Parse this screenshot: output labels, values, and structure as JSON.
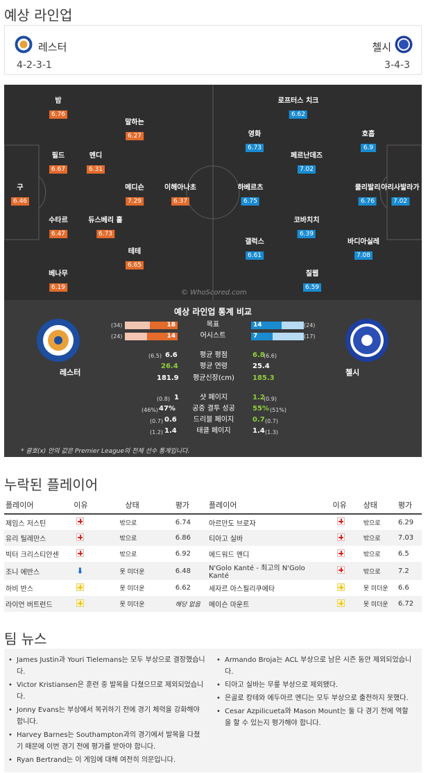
{
  "lineup_title": "예상 라인업",
  "home": {
    "name": "레스터",
    "formation": "4-2-3-1"
  },
  "away": {
    "name": "첼시",
    "formation": "3-4-3"
  },
  "pitch": {
    "watermark": "© WhoScored.com",
    "home_players": [
      {
        "name": "밤",
        "rating": "6.76"
      },
      {
        "name": "말하는",
        "rating": "6.27"
      },
      {
        "name": "필드",
        "rating": "6.67"
      },
      {
        "name": "멘디",
        "rating": "6.31"
      },
      {
        "name": "구",
        "rating": "6.46"
      },
      {
        "name": "메디슨",
        "rating": "7.29"
      },
      {
        "name": "이헤아나초",
        "rating": "6.37"
      },
      {
        "name": "수타르",
        "rating": "6.47"
      },
      {
        "name": "듀스베리 홀",
        "rating": "6.73"
      },
      {
        "name": "테테",
        "rating": "6.65"
      },
      {
        "name": "베나무",
        "rating": "6.19"
      }
    ],
    "away_players": [
      {
        "name": "로프터스 치크",
        "rating": "6.62"
      },
      {
        "name": "영화",
        "rating": "6.73"
      },
      {
        "name": "호흡",
        "rating": "6.9"
      },
      {
        "name": "페르난데즈",
        "rating": "7.02"
      },
      {
        "name": "하베르츠",
        "rating": "6.75"
      },
      {
        "name": "쿨리발리",
        "rating": "6.76"
      },
      {
        "name": "아리사발라가",
        "rating": "7.02"
      },
      {
        "name": "코바치치",
        "rating": "6.39"
      },
      {
        "name": "바디아실레",
        "rating": "7.08"
      },
      {
        "name": "갤럭스",
        "rating": "6.61"
      },
      {
        "name": "칠웹",
        "rating": "6.59"
      }
    ]
  },
  "stats": {
    "title": "예상 라인업 통계 비교",
    "bars": [
      {
        "label": "목표",
        "home": "18",
        "home_avg": "(34)",
        "away": "14",
        "away_avg": "(24)",
        "home_frac": 0.53,
        "away_frac": 0.58
      },
      {
        "label": "어시스트",
        "home": "14",
        "home_avg": "(24)",
        "away": "7",
        "away_avg": "(17)",
        "home_frac": 0.58,
        "away_frac": 0.41
      }
    ],
    "rows1": [
      {
        "label": "평균 평점",
        "home_avg": "(6.5)",
        "home": "6.6",
        "away": "6.8",
        "away_avg": "(6.6)"
      },
      {
        "label": "평균 연령",
        "home_avg": "",
        "home": "26.4",
        "away": "25.4",
        "away_avg": ""
      },
      {
        "label": "평균신장(cm)",
        "home_avg": "",
        "home": "181.9",
        "away": "185.3",
        "away_avg": ""
      }
    ],
    "rows2": [
      {
        "label": "샷 페이지",
        "home_avg": "(0.8)",
        "home": "1",
        "away": "1.2",
        "away_avg": "(0.9)"
      },
      {
        "label": "공중 결투 성공",
        "home_avg": "(46%)",
        "home": "47%",
        "away": "55%",
        "away_avg": "(51%)"
      },
      {
        "label": "드리블 페이지",
        "home_avg": "(0.7)",
        "home": "0.6",
        "away": "0.7",
        "away_avg": "(0.7)"
      },
      {
        "label": "태클 페이지",
        "home_avg": "(1.2)",
        "home": "1.4",
        "away": "1.4",
        "away_avg": "(1.3)"
      }
    ],
    "footnote": "* 괄호(x) 안의 값은 Premier League의 전체 선수 통계입니다."
  },
  "missing": {
    "title": "누락된 플레이어",
    "headers": {
      "player": "플레이어",
      "reason": "이유",
      "status": "상태",
      "rating": "평가"
    },
    "rows": [
      {
        "home_player": "제임스 저스틴",
        "home_icon": "red-cross",
        "home_status": "밖으로",
        "home_rating": "6.74",
        "away_player": "아르만도 브로자",
        "away_icon": "red-cross",
        "away_status": "밖으로",
        "away_rating": "6.29"
      },
      {
        "home_player": "유리 틸레만스",
        "home_icon": "red-cross",
        "home_status": "밖으로",
        "home_rating": "6.86",
        "away_player": "티아고 실바",
        "away_icon": "red-cross",
        "away_status": "밖으로",
        "away_rating": "7.03"
      },
      {
        "home_player": "빅터 크리스티안센",
        "home_icon": "red-cross",
        "home_status": "밖으로",
        "home_rating": "6.92",
        "away_player": "에드워드 멘디",
        "away_icon": "red-cross",
        "away_status": "밖으로",
        "away_rating": "6.5"
      },
      {
        "home_player": "조니 에반스",
        "home_icon": "down-arrow",
        "home_status": "못 미더운",
        "home_rating": "6.48",
        "away_player": "N'Golo Kanté - 최고의 N'Golo Kanté",
        "away_icon": "red-cross",
        "away_status": "밖으로",
        "away_rating": "7.2"
      },
      {
        "home_player": "하비 반스",
        "home_icon": "yellow-cross",
        "home_status": "못 미더운",
        "home_rating": "6.62",
        "away_player": "세자르 아스필리쿠에타",
        "away_icon": "yellow-cross",
        "away_status": "못 미더운",
        "away_rating": "6.6"
      },
      {
        "home_player": "라이언 버트런드",
        "home_icon": "yellow-cross",
        "home_status": "못 미더운",
        "home_rating": "해당 없음",
        "away_player": "메이슨 마운트",
        "away_icon": "yellow-cross",
        "away_status": "못 미더운",
        "away_rating": "6.72"
      }
    ]
  },
  "news": {
    "title": "팀 뉴스",
    "home": [
      "James Justin과 Youri Tielemans는 모두 부상으로 결장했습니다.",
      "Victor Kristiansen은 훈련 중 발목을 다쳤으므로 제외되었습니다.",
      "Jonny Evans는 부상에서 복귀하기 전에 경기 체력을 강화해야 합니다.",
      "Harvey Barnes는 Southampton과의 경기에서 발목을 다쳤기 때문에 이번 경기 전에 평가를 받아야 합니다.",
      "Ryan Bertrand는 이 게임에 대해 여전히 의문입니다."
    ],
    "away": [
      "Armando Broja는 ACL 부상으로 남은 시즌 동안 제외되었습니다.",
      "티아고 실바는 무릎 부상으로 제외됐다.",
      "은골로 캉테와 에두아르 멘디는 모두 부상으로 출전하지 못했다.",
      "Cesar Azpilicueta와 Mason Mount는 둘 다 경기 전에 역할을 할 수 있는지 평가해야 합니다."
    ]
  },
  "colors": {
    "home": "#e36b2c",
    "away": "#1a8bd1",
    "pitch": "#2e2e2e",
    "stats_bg": "#3b3b3b",
    "green": "#8fcf3c"
  }
}
